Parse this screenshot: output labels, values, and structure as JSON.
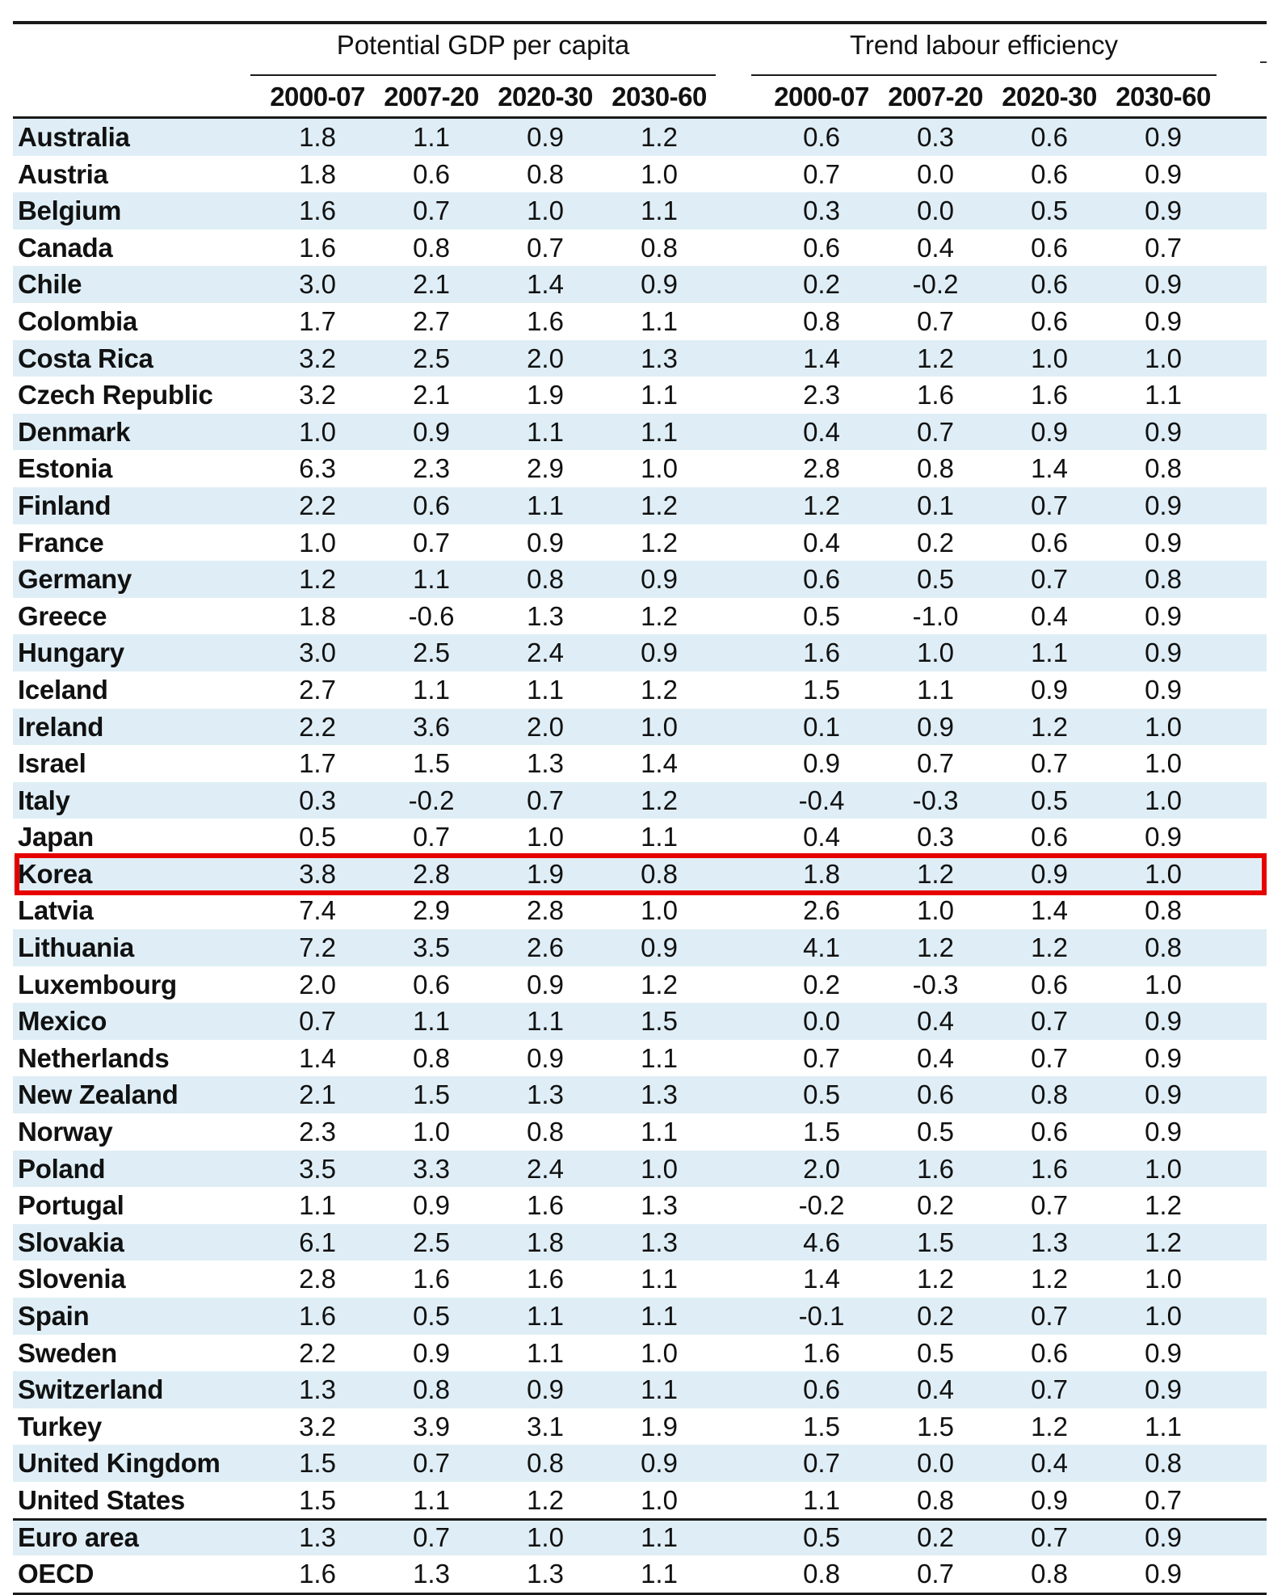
{
  "table": {
    "group_headers": [
      "Potential GDP per capita",
      "Trend labour efficiency"
    ],
    "period_headers": [
      "2000-07",
      "2007-20",
      "2020-30",
      "2030-60",
      "2000-07",
      "2007-20",
      "2020-30",
      "2030-60"
    ],
    "highlighted_row": "Korea",
    "highlight_color": "#e60000",
    "shade_color": "#dfeef6",
    "rows": [
      {
        "name": "Australia",
        "values": [
          "1.8",
          "1.1",
          "0.9",
          "1.2",
          "0.6",
          "0.3",
          "0.6",
          "0.9"
        ]
      },
      {
        "name": "Austria",
        "values": [
          "1.8",
          "0.6",
          "0.8",
          "1.0",
          "0.7",
          "0.0",
          "0.6",
          "0.9"
        ]
      },
      {
        "name": "Belgium",
        "values": [
          "1.6",
          "0.7",
          "1.0",
          "1.1",
          "0.3",
          "0.0",
          "0.5",
          "0.9"
        ]
      },
      {
        "name": "Canada",
        "values": [
          "1.6",
          "0.8",
          "0.7",
          "0.8",
          "0.6",
          "0.4",
          "0.6",
          "0.7"
        ]
      },
      {
        "name": "Chile",
        "values": [
          "3.0",
          "2.1",
          "1.4",
          "0.9",
          "0.2",
          "-0.2",
          "0.6",
          "0.9"
        ]
      },
      {
        "name": "Colombia",
        "values": [
          "1.7",
          "2.7",
          "1.6",
          "1.1",
          "0.8",
          "0.7",
          "0.6",
          "0.9"
        ]
      },
      {
        "name": "Costa Rica",
        "values": [
          "3.2",
          "2.5",
          "2.0",
          "1.3",
          "1.4",
          "1.2",
          "1.0",
          "1.0"
        ]
      },
      {
        "name": "Czech Republic",
        "values": [
          "3.2",
          "2.1",
          "1.9",
          "1.1",
          "2.3",
          "1.6",
          "1.6",
          "1.1"
        ]
      },
      {
        "name": "Denmark",
        "values": [
          "1.0",
          "0.9",
          "1.1",
          "1.1",
          "0.4",
          "0.7",
          "0.9",
          "0.9"
        ]
      },
      {
        "name": "Estonia",
        "values": [
          "6.3",
          "2.3",
          "2.9",
          "1.0",
          "2.8",
          "0.8",
          "1.4",
          "0.8"
        ]
      },
      {
        "name": "Finland",
        "values": [
          "2.2",
          "0.6",
          "1.1",
          "1.2",
          "1.2",
          "0.1",
          "0.7",
          "0.9"
        ]
      },
      {
        "name": "France",
        "values": [
          "1.0",
          "0.7",
          "0.9",
          "1.2",
          "0.4",
          "0.2",
          "0.6",
          "0.9"
        ]
      },
      {
        "name": "Germany",
        "values": [
          "1.2",
          "1.1",
          "0.8",
          "0.9",
          "0.6",
          "0.5",
          "0.7",
          "0.8"
        ]
      },
      {
        "name": "Greece",
        "values": [
          "1.8",
          "-0.6",
          "1.3",
          "1.2",
          "0.5",
          "-1.0",
          "0.4",
          "0.9"
        ]
      },
      {
        "name": "Hungary",
        "values": [
          "3.0",
          "2.5",
          "2.4",
          "0.9",
          "1.6",
          "1.0",
          "1.1",
          "0.9"
        ]
      },
      {
        "name": "Iceland",
        "values": [
          "2.7",
          "1.1",
          "1.1",
          "1.2",
          "1.5",
          "1.1",
          "0.9",
          "0.9"
        ]
      },
      {
        "name": "Ireland",
        "values": [
          "2.2",
          "3.6",
          "2.0",
          "1.0",
          "0.1",
          "0.9",
          "1.2",
          "1.0"
        ]
      },
      {
        "name": "Israel",
        "values": [
          "1.7",
          "1.5",
          "1.3",
          "1.4",
          "0.9",
          "0.7",
          "0.7",
          "1.0"
        ]
      },
      {
        "name": "Italy",
        "values": [
          "0.3",
          "-0.2",
          "0.7",
          "1.2",
          "-0.4",
          "-0.3",
          "0.5",
          "1.0"
        ]
      },
      {
        "name": "Japan",
        "values": [
          "0.5",
          "0.7",
          "1.0",
          "1.1",
          "0.4",
          "0.3",
          "0.6",
          "0.9"
        ]
      },
      {
        "name": "Korea",
        "values": [
          "3.8",
          "2.8",
          "1.9",
          "0.8",
          "1.8",
          "1.2",
          "0.9",
          "1.0"
        ]
      },
      {
        "name": "Latvia",
        "values": [
          "7.4",
          "2.9",
          "2.8",
          "1.0",
          "2.6",
          "1.0",
          "1.4",
          "0.8"
        ]
      },
      {
        "name": "Lithuania",
        "values": [
          "7.2",
          "3.5",
          "2.6",
          "0.9",
          "4.1",
          "1.2",
          "1.2",
          "0.8"
        ]
      },
      {
        "name": "Luxembourg",
        "values": [
          "2.0",
          "0.6",
          "0.9",
          "1.2",
          "0.2",
          "-0.3",
          "0.6",
          "1.0"
        ]
      },
      {
        "name": "Mexico",
        "values": [
          "0.7",
          "1.1",
          "1.1",
          "1.5",
          "0.0",
          "0.4",
          "0.7",
          "0.9"
        ]
      },
      {
        "name": "Netherlands",
        "values": [
          "1.4",
          "0.8",
          "0.9",
          "1.1",
          "0.7",
          "0.4",
          "0.7",
          "0.9"
        ]
      },
      {
        "name": "New Zealand",
        "values": [
          "2.1",
          "1.5",
          "1.3",
          "1.3",
          "0.5",
          "0.6",
          "0.8",
          "0.9"
        ]
      },
      {
        "name": "Norway",
        "values": [
          "2.3",
          "1.0",
          "0.8",
          "1.1",
          "1.5",
          "0.5",
          "0.6",
          "0.9"
        ]
      },
      {
        "name": "Poland",
        "values": [
          "3.5",
          "3.3",
          "2.4",
          "1.0",
          "2.0",
          "1.6",
          "1.6",
          "1.0"
        ]
      },
      {
        "name": "Portugal",
        "values": [
          "1.1",
          "0.9",
          "1.6",
          "1.3",
          "-0.2",
          "0.2",
          "0.7",
          "1.2"
        ]
      },
      {
        "name": "Slovakia",
        "values": [
          "6.1",
          "2.5",
          "1.8",
          "1.3",
          "4.6",
          "1.5",
          "1.3",
          "1.2"
        ]
      },
      {
        "name": "Slovenia",
        "values": [
          "2.8",
          "1.6",
          "1.6",
          "1.1",
          "1.4",
          "1.2",
          "1.2",
          "1.0"
        ]
      },
      {
        "name": "Spain",
        "values": [
          "1.6",
          "0.5",
          "1.1",
          "1.1",
          "-0.1",
          "0.2",
          "0.7",
          "1.0"
        ]
      },
      {
        "name": "Sweden",
        "values": [
          "2.2",
          "0.9",
          "1.1",
          "1.0",
          "1.6",
          "0.5",
          "0.6",
          "0.9"
        ]
      },
      {
        "name": "Switzerland",
        "values": [
          "1.3",
          "0.8",
          "0.9",
          "1.1",
          "0.6",
          "0.4",
          "0.7",
          "0.9"
        ]
      },
      {
        "name": "Turkey",
        "values": [
          "3.2",
          "3.9",
          "3.1",
          "1.9",
          "1.5",
          "1.5",
          "1.2",
          "1.1"
        ]
      },
      {
        "name": "United Kingdom",
        "values": [
          "1.5",
          "0.7",
          "0.8",
          "0.9",
          "0.7",
          "0.0",
          "0.4",
          "0.8"
        ]
      },
      {
        "name": "United States",
        "values": [
          "1.5",
          "1.1",
          "1.2",
          "1.0",
          "1.1",
          "0.8",
          "0.9",
          "0.7"
        ]
      },
      {
        "name": "Euro area",
        "values": [
          "1.3",
          "0.7",
          "1.0",
          "1.1",
          "0.5",
          "0.2",
          "0.7",
          "0.9"
        ]
      },
      {
        "name": "OECD",
        "values": [
          "1.6",
          "1.3",
          "1.3",
          "1.1",
          "0.8",
          "0.7",
          "0.8",
          "0.9"
        ]
      }
    ]
  }
}
